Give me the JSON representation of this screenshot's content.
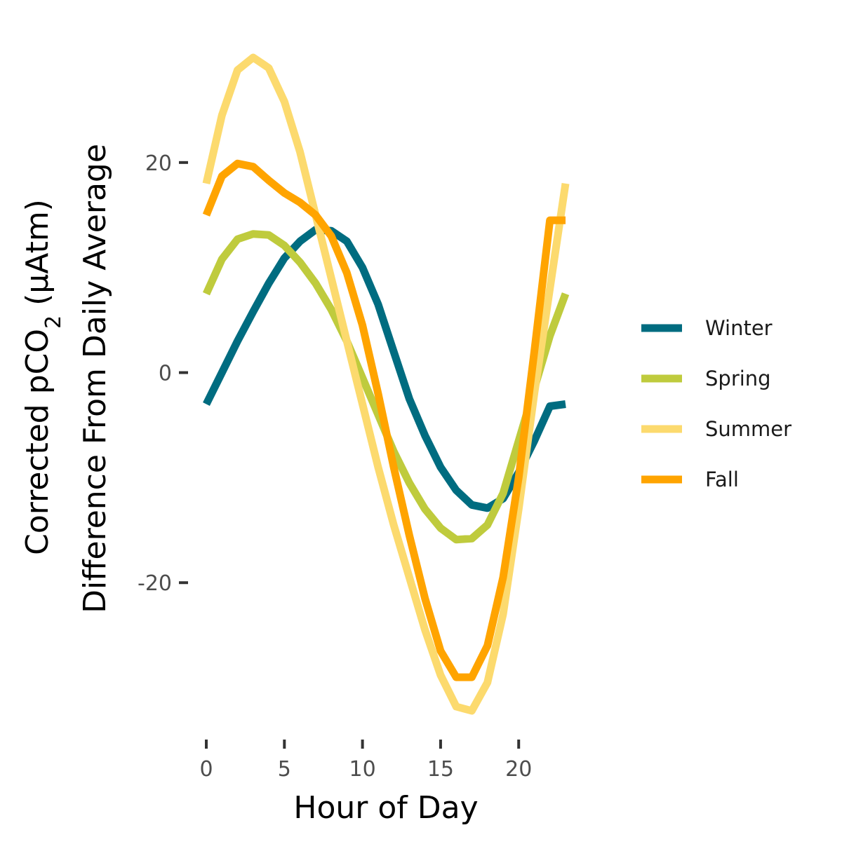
{
  "chart_data": {
    "type": "line",
    "title": "",
    "xlabel": "Hour of Day",
    "ylabel": {
      "prefix": "Corrected pCO",
      "subscript": "2",
      "suffix": " (μAtm)",
      "line2": "Difference From Daily Average"
    },
    "xlim": [
      0,
      23
    ],
    "ylim": [
      -34,
      31
    ],
    "x_ticks": [
      0,
      5,
      10,
      15,
      20
    ],
    "y_ticks": [
      -20,
      0,
      20
    ],
    "grid": false,
    "legend_position": "right",
    "x": [
      0,
      1,
      2,
      3,
      4,
      5,
      6,
      7,
      8,
      9,
      10,
      11,
      12,
      13,
      14,
      15,
      16,
      17,
      18,
      19,
      20,
      21,
      22,
      23
    ],
    "series": [
      {
        "name": "Winter",
        "color": "#006C80",
        "values": [
          -3,
          0,
          3,
          5.8,
          8.5,
          10.9,
          12.5,
          13.6,
          13.5,
          12.5,
          10,
          6.5,
          2,
          -2.5,
          -6,
          -9,
          -11.2,
          -12.6,
          -12.9,
          -12,
          -9.5,
          -6.5,
          -3.2,
          -3
        ]
      },
      {
        "name": "Spring",
        "color": "#BFCB3D",
        "values": [
          7.5,
          10.8,
          12.7,
          13.2,
          13.1,
          12.1,
          10.5,
          8.5,
          6,
          3,
          -0.5,
          -4,
          -7.5,
          -10.5,
          -13,
          -14.8,
          -15.9,
          -15.8,
          -14.5,
          -11.5,
          -6.5,
          -1.5,
          3.5,
          7.5
        ]
      },
      {
        "name": "Summer",
        "color": "#FCDA6E",
        "values": [
          18,
          24.5,
          28.8,
          30,
          29,
          25.8,
          21,
          15,
          9,
          3,
          -3,
          -9,
          -14.5,
          -19.5,
          -24.5,
          -28.8,
          -31.8,
          -32.2,
          -29.5,
          -23,
          -13,
          -2,
          8,
          18
        ]
      },
      {
        "name": "Fall",
        "color": "#FFA400",
        "values": [
          15,
          18.7,
          19.9,
          19.6,
          18.3,
          17.1,
          16.2,
          15,
          13,
          9.5,
          4.5,
          -2,
          -9,
          -15.5,
          -21.5,
          -26.5,
          -29,
          -29,
          -26,
          -19.5,
          -10,
          2,
          14.5,
          14.5
        ]
      }
    ]
  }
}
